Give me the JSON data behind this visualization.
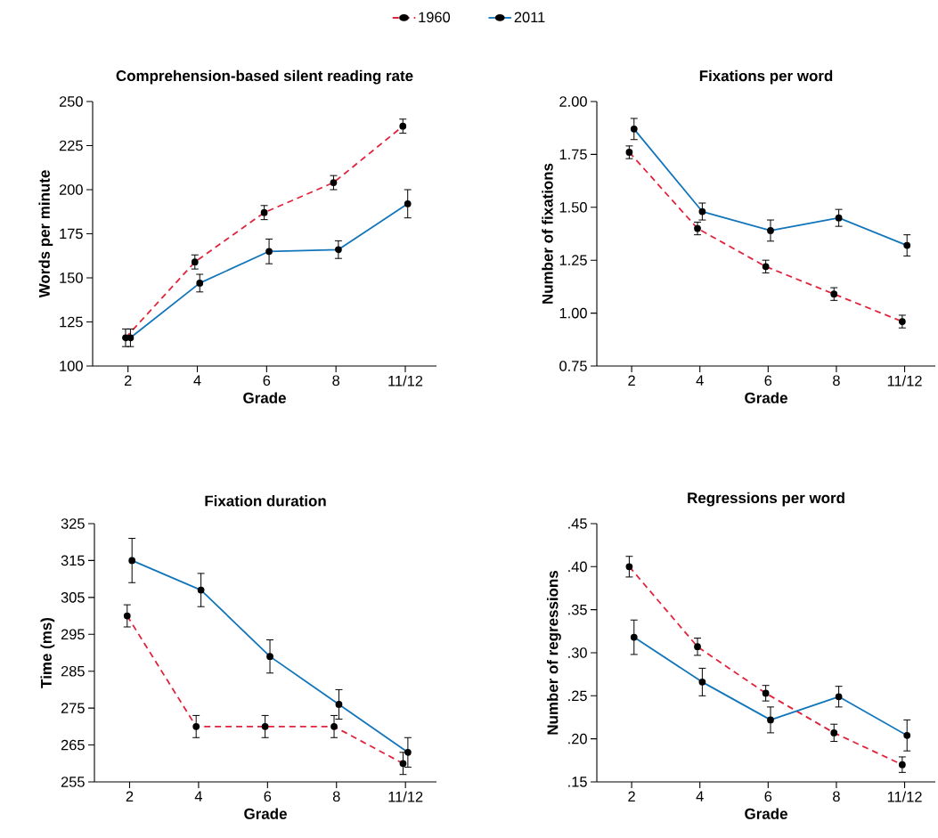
{
  "chart_data": [
    {
      "type": "line",
      "title": "Comprehension-based silent reading rate",
      "xlabel": "Grade",
      "ylabel": "Words per minute",
      "categories": [
        "2",
        "4",
        "6",
        "8",
        "11/12"
      ],
      "ylim": [
        100,
        250
      ],
      "yticks": [
        100,
        125,
        150,
        175,
        200,
        225,
        250
      ],
      "marker": "circle",
      "legend": "top",
      "series": [
        {
          "name": "1960",
          "color": "#e0243c",
          "line_style": "dashed",
          "values": [
            116,
            159,
            187,
            204,
            236
          ],
          "errors": [
            5,
            4,
            4,
            4,
            4
          ]
        },
        {
          "name": "2011",
          "color": "#1175bb",
          "line_style": "solid",
          "values": [
            116,
            147,
            165,
            166,
            192
          ],
          "errors": [
            5,
            5,
            7,
            5,
            8
          ]
        }
      ]
    },
    {
      "type": "line",
      "title": "Fixations per word",
      "xlabel": "Grade",
      "ylabel": "Number of fixations",
      "categories": [
        "2",
        "4",
        "6",
        "8",
        "11/12"
      ],
      "ylim": [
        0.75,
        2.0
      ],
      "yticks": [
        {
          "value": 0.75,
          "label": "0.75"
        },
        {
          "value": 1.0,
          "label": "1.00"
        },
        {
          "value": 1.25,
          "label": "1.25"
        },
        {
          "value": 1.5,
          "label": "1.50"
        },
        {
          "value": 1.75,
          "label": "1.75"
        },
        {
          "value": 2.0,
          "label": "2.00"
        }
      ],
      "marker": "circle",
      "series": [
        {
          "color": "#e0243c",
          "line_style": "dashed",
          "values": [
            1.76,
            1.4,
            1.22,
            1.09,
            0.96
          ],
          "errors": [
            0.03,
            0.03,
            0.03,
            0.03,
            0.03
          ]
        },
        {
          "color": "#1175bb",
          "line_style": "solid",
          "values": [
            1.87,
            1.48,
            1.39,
            1.45,
            1.32
          ],
          "errors": [
            0.05,
            0.04,
            0.05,
            0.04,
            0.05
          ]
        }
      ]
    },
    {
      "type": "line",
      "title": "Fixation duration",
      "xlabel": "Grade",
      "ylabel": "Time (ms)",
      "categories": [
        "2",
        "4",
        "6",
        "8",
        "11/12"
      ],
      "ylim": [
        255,
        325
      ],
      "yticks": [
        255,
        265,
        275,
        285,
        295,
        305,
        315,
        325
      ],
      "marker": "circle",
      "series": [
        {
          "color": "#e0243c",
          "line_style": "dashed",
          "values": [
            300,
            270,
            270,
            270,
            260
          ],
          "errors": [
            3,
            3,
            3,
            3,
            3
          ]
        },
        {
          "color": "#1175bb",
          "line_style": "solid",
          "values": [
            315,
            307,
            289,
            276,
            263
          ],
          "errors": [
            6,
            4.5,
            4.5,
            4,
            4
          ]
        }
      ]
    },
    {
      "type": "line",
      "title": "Regressions per word",
      "xlabel": "Grade",
      "ylabel": "Number of regressions",
      "categories": [
        "2",
        "4",
        "6",
        "8",
        "11/12"
      ],
      "ylim": [
        0.15,
        0.45
      ],
      "yticks": [
        {
          "value": 0.15,
          "label": ".15"
        },
        {
          "value": 0.2,
          "label": ".20"
        },
        {
          "value": 0.25,
          "label": ".25"
        },
        {
          "value": 0.3,
          "label": ".30"
        },
        {
          "value": 0.35,
          "label": ".35"
        },
        {
          "value": 0.4,
          "label": ".40"
        },
        {
          "value": 0.45,
          "label": ".45"
        }
      ],
      "marker": "circle",
      "series": [
        {
          "color": "#e0243c",
          "line_style": "dashed",
          "values": [
            0.4,
            0.307,
            0.253,
            0.207,
            0.17
          ],
          "errors": [
            0.012,
            0.01,
            0.009,
            0.01,
            0.009
          ]
        },
        {
          "color": "#1175bb",
          "line_style": "solid",
          "values": [
            0.318,
            0.266,
            0.222,
            0.249,
            0.204
          ],
          "errors": [
            0.02,
            0.016,
            0.015,
            0.012,
            0.018
          ]
        }
      ]
    }
  ]
}
